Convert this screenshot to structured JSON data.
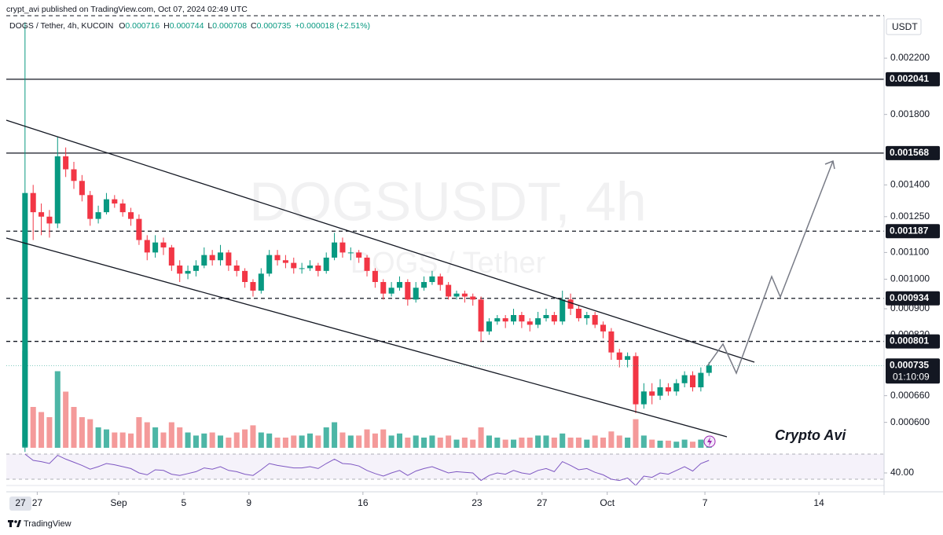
{
  "header": {
    "published": "crypt_avi published on TradingView.com, Oct 07, 2024 02:49 UTC"
  },
  "chart_data": {
    "type": "candlestick",
    "symbol": "DOGS / Tether, 4h, KUCOIN",
    "legend_labels": [
      "O",
      "H",
      "L",
      "C"
    ],
    "change": "+0.000018 (+2.51%)",
    "currency": "USDT",
    "watermark": "DOGSUSDT, 4h",
    "watermark_sub": "DOGS / Tether",
    "countdown": "01:10:09",
    "annotation": "Crypto Avi",
    "crosshair_label": "27",
    "log_scale": true,
    "grid": false,
    "up_color": "#089981",
    "down_color": "#f23645",
    "up_volume_color": "#4db6a6",
    "down_volume_color": "#f49a9a",
    "x": [
      -1,
      -0.5,
      0,
      0.5,
      1,
      1.5,
      2,
      2.5,
      3,
      3.5,
      4,
      4.5,
      5,
      5.5,
      6,
      6.5,
      7,
      7.5,
      8,
      8.5,
      9,
      9.5,
      10,
      10.5,
      11,
      11.5,
      12,
      12.5,
      13,
      13.5,
      14,
      14.5,
      15,
      15.5,
      16,
      16.5,
      17,
      17.5,
      18,
      18.5,
      19,
      19.5,
      20,
      20.5,
      21,
      21.5,
      22,
      22.5,
      23,
      23.5,
      24,
      24.5,
      25,
      25.5,
      26,
      26.5,
      27,
      27.5,
      28,
      28.5,
      29,
      29.5,
      30,
      30.5,
      31,
      31.5,
      32,
      32.5,
      33,
      33.5,
      34,
      34.5,
      35,
      35.5,
      36,
      36.5,
      37,
      37.5,
      38,
      38.5,
      39,
      39.5,
      40,
      40.5,
      41
    ],
    "open": [
      0.00055,
      0.00136,
      0.00127,
      0.00125,
      0.00122,
      0.00155,
      0.00148,
      0.00142,
      0.00135,
      0.00124,
      0.00127,
      0.00133,
      0.00131,
      0.00127,
      0.00124,
      0.00115,
      0.0011,
      0.00114,
      0.00112,
      0.00105,
      0.00102,
      0.00103,
      0.00105,
      0.00109,
      0.00107,
      0.0011,
      0.00105,
      0.00103,
      0.00099,
      0.00096,
      0.00102,
      0.00109,
      0.00107,
      0.00106,
      0.00104,
      0.00104,
      0.00105,
      0.00103,
      0.00108,
      0.00114,
      0.0011,
      0.0011,
      0.00108,
      0.00103,
      0.00099,
      0.00095,
      0.00097,
      0.00099,
      0.00093,
      0.00097,
      0.00099,
      0.00101,
      0.00098,
      0.00094,
      0.00095,
      0.00094,
      0.00093,
      0.00083,
      0.00086,
      0.00087,
      0.00086,
      0.00088,
      0.00086,
      0.00085,
      0.00087,
      0.00088,
      0.00086,
      0.00093,
      0.0009,
      0.00087,
      0.00088,
      0.00085,
      0.00083,
      0.00077,
      0.00075,
      0.00076,
      0.00064,
      0.00067,
      0.00066,
      0.00068,
      0.00067,
      0.00069,
      0.00071,
      0.00068,
      0.000716
    ],
    "high": [
      0.0025,
      0.0014,
      0.00131,
      0.00128,
      0.00166,
      0.0016,
      0.00152,
      0.00145,
      0.00137,
      0.0013,
      0.00136,
      0.00135,
      0.00133,
      0.00129,
      0.00126,
      0.00117,
      0.00117,
      0.00116,
      0.00113,
      0.00107,
      0.00105,
      0.00107,
      0.00112,
      0.00111,
      0.00113,
      0.00111,
      0.00107,
      0.00104,
      0.001,
      0.00104,
      0.00111,
      0.00111,
      0.00109,
      0.00108,
      0.00106,
      0.00107,
      0.00106,
      0.0011,
      0.00118,
      0.00116,
      0.00112,
      0.00111,
      0.00109,
      0.00104,
      0.001,
      0.00099,
      0.00101,
      0.001,
      0.00099,
      0.00101,
      0.00103,
      0.00102,
      0.00099,
      0.00096,
      0.00096,
      0.00095,
      0.00094,
      0.00087,
      0.00088,
      0.00088,
      0.0009,
      0.00089,
      0.00087,
      0.00089,
      0.0009,
      0.00089,
      0.00096,
      0.00095,
      0.00091,
      0.00089,
      0.00089,
      0.00086,
      0.00084,
      0.00078,
      0.00077,
      0.00077,
      0.00069,
      0.00069,
      0.0007,
      0.00069,
      0.0007,
      0.00072,
      0.00072,
      0.00073,
      0.000744
    ],
    "low": [
      0.00054,
      0.00115,
      0.00117,
      0.00116,
      0.0012,
      0.00144,
      0.00138,
      0.00132,
      0.00121,
      0.00122,
      0.00126,
      0.00129,
      0.00125,
      0.00121,
      0.00113,
      0.00107,
      0.00108,
      0.00109,
      0.00103,
      0.00099,
      0.001,
      0.00101,
      0.00104,
      0.00105,
      0.00105,
      0.00103,
      0.00101,
      0.00097,
      0.00094,
      0.00095,
      0.00101,
      0.00105,
      0.00104,
      0.00102,
      0.00102,
      0.00103,
      0.00101,
      0.00102,
      0.00107,
      0.00108,
      0.00107,
      0.00106,
      0.00101,
      0.00097,
      0.00093,
      0.00094,
      0.00096,
      0.00091,
      0.00092,
      0.00096,
      0.00098,
      0.00096,
      0.00093,
      0.00093,
      0.00092,
      0.00091,
      0.0008,
      0.00082,
      0.00085,
      0.00084,
      0.00085,
      0.00084,
      0.00083,
      0.00084,
      0.00086,
      0.00085,
      0.00085,
      0.00088,
      0.00086,
      0.00085,
      0.00084,
      0.00081,
      0.00075,
      0.00073,
      0.00073,
      0.00062,
      0.00063,
      0.00064,
      0.00065,
      0.00066,
      0.00066,
      0.00068,
      0.00067,
      0.00067,
      0.000708
    ],
    "close": [
      0.00136,
      0.00127,
      0.00125,
      0.00122,
      0.00155,
      0.00148,
      0.00142,
      0.00135,
      0.00124,
      0.00127,
      0.00133,
      0.00131,
      0.00127,
      0.00124,
      0.00115,
      0.0011,
      0.00114,
      0.00112,
      0.00105,
      0.00102,
      0.00103,
      0.00105,
      0.00109,
      0.00107,
      0.0011,
      0.00105,
      0.00103,
      0.00099,
      0.00096,
      0.00102,
      0.00109,
      0.00107,
      0.00106,
      0.00104,
      0.00104,
      0.00105,
      0.00103,
      0.00108,
      0.00114,
      0.0011,
      0.0011,
      0.00108,
      0.00103,
      0.00099,
      0.00095,
      0.00097,
      0.00099,
      0.00093,
      0.00097,
      0.00099,
      0.00101,
      0.00098,
      0.00094,
      0.00095,
      0.00094,
      0.00093,
      0.00083,
      0.00086,
      0.00087,
      0.00086,
      0.00088,
      0.00086,
      0.00085,
      0.00087,
      0.00088,
      0.00086,
      0.00093,
      0.0009,
      0.00087,
      0.00088,
      0.00085,
      0.00083,
      0.00077,
      0.00075,
      0.00076,
      0.00064,
      0.00067,
      0.00066,
      0.00068,
      0.00067,
      0.00069,
      0.00071,
      0.00068,
      0.000716,
      0.000735
    ],
    "volume": [
      95,
      40,
      35,
      30,
      75,
      55,
      40,
      30,
      28,
      20,
      18,
      15,
      15,
      14,
      30,
      25,
      20,
      15,
      25,
      20,
      15,
      12,
      14,
      15,
      12,
      10,
      15,
      18,
      22,
      15,
      14,
      10,
      10,
      12,
      12,
      14,
      12,
      20,
      25,
      15,
      12,
      12,
      18,
      14,
      18,
      12,
      14,
      10,
      12,
      10,
      12,
      10,
      12,
      8,
      10,
      8,
      20,
      12,
      10,
      8,
      8,
      10,
      10,
      12,
      12,
      10,
      14,
      10,
      10,
      8,
      12,
      10,
      16,
      12,
      10,
      28,
      12,
      8,
      7,
      7,
      6,
      8,
      6,
      8,
      5
    ],
    "vlim": [
      0,
      100
    ],
    "xlim": [
      -1.9,
      52
    ],
    "xticks": [
      {
        "value": 0,
        "label": "27"
      },
      {
        "value": 5,
        "label": "Sep"
      },
      {
        "value": 9,
        "label": "5"
      },
      {
        "value": 13,
        "label": "9"
      },
      {
        "value": 20,
        "label": "16"
      },
      {
        "value": 27,
        "label": "23"
      },
      {
        "value": 31,
        "label": "27"
      },
      {
        "value": 35,
        "label": "Oct"
      },
      {
        "value": 41,
        "label": "7"
      },
      {
        "value": 48,
        "label": "14"
      }
    ],
    "ylim": [
      0.000548,
      0.00256
    ],
    "yticks": [
      {
        "value": 0.0022,
        "label": "0.002200"
      },
      {
        "value": 0.0018,
        "label": "0.001800"
      },
      {
        "value": 0.0014,
        "label": "0.001400"
      },
      {
        "value": 0.00125,
        "label": "0.001250"
      },
      {
        "value": 0.0011,
        "label": "0.001100"
      },
      {
        "value": 0.001,
        "label": "0.001000"
      },
      {
        "value": 0.0009,
        "label": "0.000900"
      },
      {
        "value": 0.00082,
        "label": "0.000820"
      },
      {
        "value": 0.00066,
        "label": "0.000660"
      },
      {
        "value": 0.0006,
        "label": "0.000600"
      }
    ],
    "levels": [
      {
        "value": 0.002041,
        "style": "solid"
      },
      {
        "value": 0.001568,
        "style": "solid"
      },
      {
        "value": 0.001187,
        "style": "dashed"
      },
      {
        "value": 0.000934,
        "style": "dashed"
      },
      {
        "value": 0.000801,
        "style": "dashed"
      }
    ],
    "rsi": [
      70,
      60,
      58,
      55,
      68,
      62,
      57,
      52,
      46,
      50,
      55,
      53,
      50,
      47,
      40,
      37,
      45,
      44,
      38,
      36,
      39,
      42,
      48,
      46,
      50,
      44,
      42,
      38,
      36,
      45,
      55,
      52,
      50,
      48,
      48,
      50,
      47,
      55,
      62,
      55,
      54,
      51,
      44,
      39,
      35,
      40,
      44,
      36,
      43,
      47,
      50,
      45,
      40,
      42,
      41,
      40,
      28,
      36,
      40,
      38,
      44,
      40,
      38,
      44,
      47,
      42,
      58,
      52,
      45,
      47,
      41,
      37,
      30,
      28,
      32,
      20,
      35,
      33,
      40,
      38,
      44,
      50,
      43,
      55,
      60
    ],
    "rsi_color": "#7e57c2",
    "rsi_lim": [
      23.75,
      77.5
    ],
    "rsi_bands": [
      30,
      70
    ],
    "rsi_ticks": [
      {
        "value": 40,
        "label": "40.00"
      }
    ]
  },
  "footer": {
    "brand": "TradingView"
  }
}
